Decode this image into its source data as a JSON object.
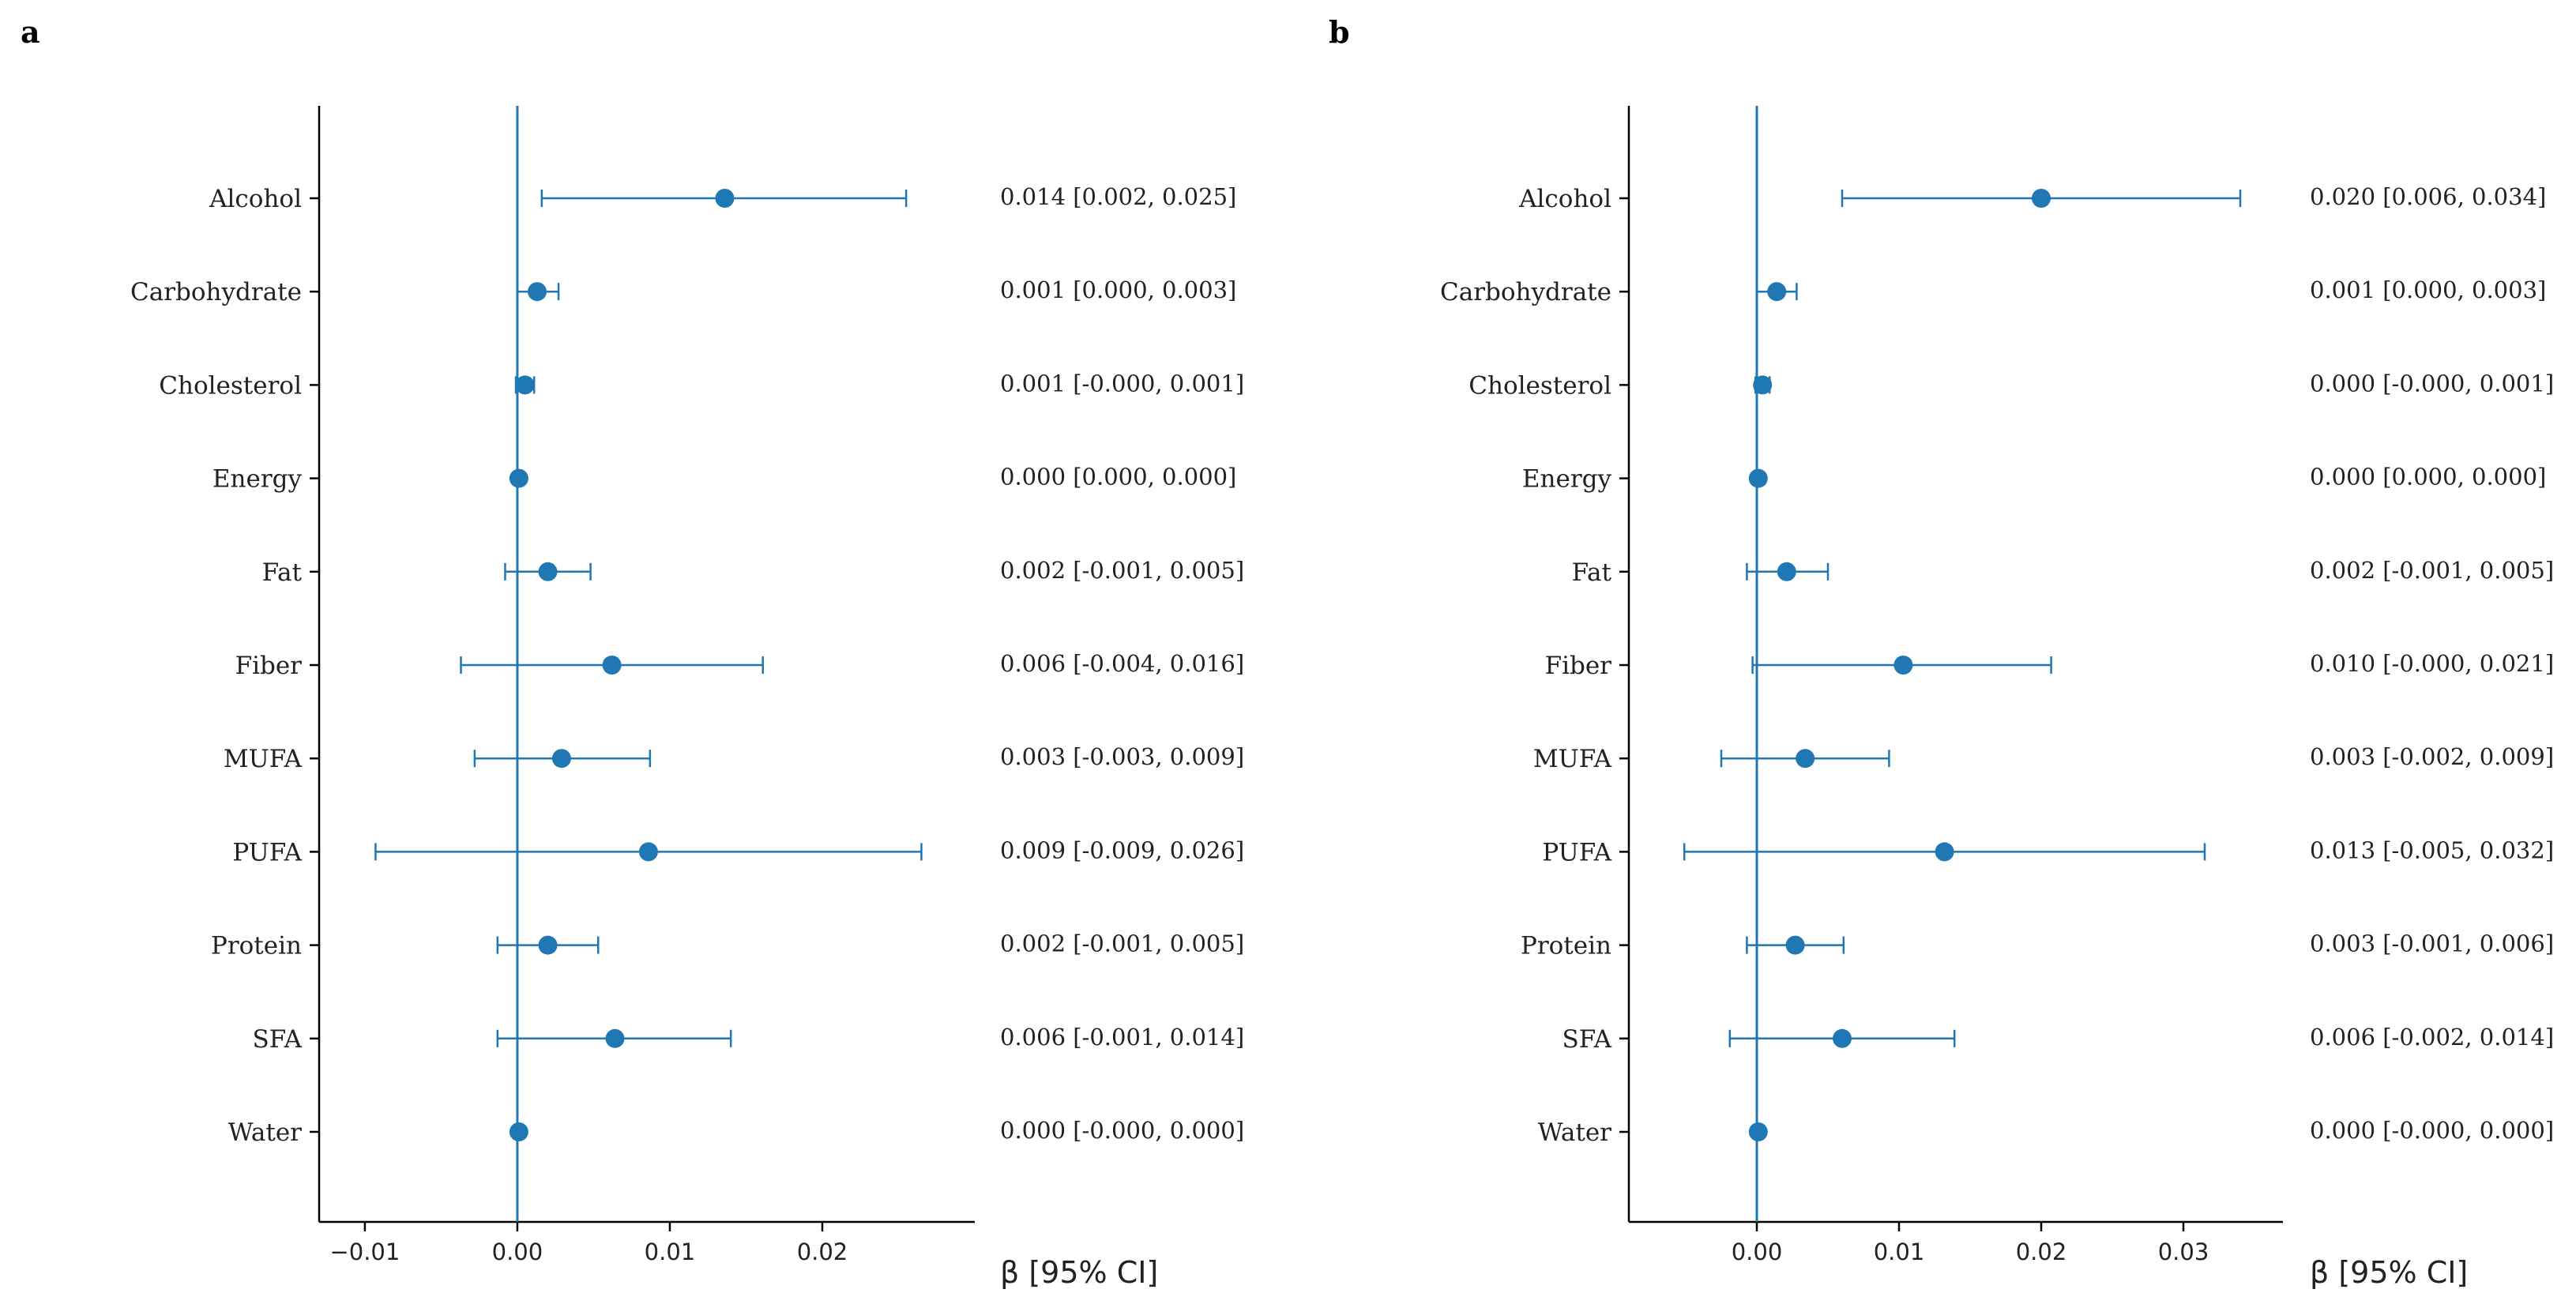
{
  "colors": {
    "marker": "#1f77b4",
    "axis": "#000000"
  },
  "chart_data": [
    {
      "panel_label": "a",
      "type": "forest",
      "xlabel": "β [95% CI]",
      "xlim": [
        -0.013,
        0.03
      ],
      "xticks": [
        -0.01,
        0.0,
        0.01,
        0.02
      ],
      "xtick_labels": [
        "−0.01",
        "0.00",
        "0.01",
        "0.02"
      ],
      "reference_line_x": 0.0,
      "rows": [
        {
          "name": "Alcohol",
          "beta": 0.0136,
          "lo": 0.0016,
          "hi": 0.0255,
          "text": "0.014 [0.002, 0.025]"
        },
        {
          "name": "Carbohydrate",
          "beta": 0.0013,
          "lo": 0.0,
          "hi": 0.0027,
          "text": "0.001 [0.000, 0.003]"
        },
        {
          "name": "Cholesterol",
          "beta": 0.0005,
          "lo": -0.0001,
          "hi": 0.0011,
          "text": "0.001 [-0.000, 0.001]"
        },
        {
          "name": "Energy",
          "beta": 0.0001,
          "lo": 0.0,
          "hi": 0.0002,
          "text": "0.000 [0.000, 0.000]"
        },
        {
          "name": "Fat",
          "beta": 0.002,
          "lo": -0.0008,
          "hi": 0.0048,
          "text": "0.002 [-0.001, 0.005]"
        },
        {
          "name": "Fiber",
          "beta": 0.0062,
          "lo": -0.0037,
          "hi": 0.0161,
          "text": "0.006 [-0.004, 0.016]"
        },
        {
          "name": "MUFA",
          "beta": 0.0029,
          "lo": -0.0028,
          "hi": 0.0087,
          "text": "0.003 [-0.003, 0.009]"
        },
        {
          "name": "PUFA",
          "beta": 0.0086,
          "lo": -0.0093,
          "hi": 0.0265,
          "text": "0.009 [-0.009, 0.026]"
        },
        {
          "name": "Protein",
          "beta": 0.002,
          "lo": -0.0013,
          "hi": 0.0053,
          "text": "0.002 [-0.001, 0.005]"
        },
        {
          "name": "SFA",
          "beta": 0.0064,
          "lo": -0.0013,
          "hi": 0.014,
          "text": "0.006 [-0.001, 0.014]"
        },
        {
          "name": "Water",
          "beta": 0.0001,
          "lo": -0.0001,
          "hi": 0.0002,
          "text": "0.000 [-0.000, 0.000]"
        }
      ]
    },
    {
      "panel_label": "b",
      "type": "forest",
      "xlabel": "β [95% CI]",
      "xlim": [
        -0.009,
        0.037
      ],
      "xticks": [
        0.0,
        0.01,
        0.02,
        0.03
      ],
      "xtick_labels": [
        "0.00",
        "0.01",
        "0.02",
        "0.03"
      ],
      "reference_line_x": 0.0,
      "rows": [
        {
          "name": "Alcohol",
          "beta": 0.02,
          "lo": 0.006,
          "hi": 0.034,
          "text": "0.020 [0.006, 0.034]"
        },
        {
          "name": "Carbohydrate",
          "beta": 0.0014,
          "lo": 0.0,
          "hi": 0.0028,
          "text": "0.001 [0.000, 0.003]"
        },
        {
          "name": "Cholesterol",
          "beta": 0.0004,
          "lo": -0.0001,
          "hi": 0.0009,
          "text": "0.000 [-0.000, 0.001]"
        },
        {
          "name": "Energy",
          "beta": 0.0001,
          "lo": 0.0,
          "hi": 0.0002,
          "text": "0.000 [0.000, 0.000]"
        },
        {
          "name": "Fat",
          "beta": 0.0021,
          "lo": -0.0007,
          "hi": 0.005,
          "text": "0.002 [-0.001, 0.005]"
        },
        {
          "name": "Fiber",
          "beta": 0.0103,
          "lo": -0.0003,
          "hi": 0.0207,
          "text": "0.010 [-0.000, 0.021]"
        },
        {
          "name": "MUFA",
          "beta": 0.0034,
          "lo": -0.0025,
          "hi": 0.0093,
          "text": "0.003 [-0.002, 0.009]"
        },
        {
          "name": "PUFA",
          "beta": 0.0132,
          "lo": -0.0051,
          "hi": 0.0315,
          "text": "0.013 [-0.005, 0.032]"
        },
        {
          "name": "Protein",
          "beta": 0.0027,
          "lo": -0.0007,
          "hi": 0.0061,
          "text": "0.003 [-0.001, 0.006]"
        },
        {
          "name": "SFA",
          "beta": 0.006,
          "lo": -0.0019,
          "hi": 0.0139,
          "text": "0.006 [-0.002, 0.014]"
        },
        {
          "name": "Water",
          "beta": 0.0001,
          "lo": -0.0001,
          "hi": 0.0002,
          "text": "0.000 [-0.000, 0.000]"
        }
      ]
    }
  ]
}
